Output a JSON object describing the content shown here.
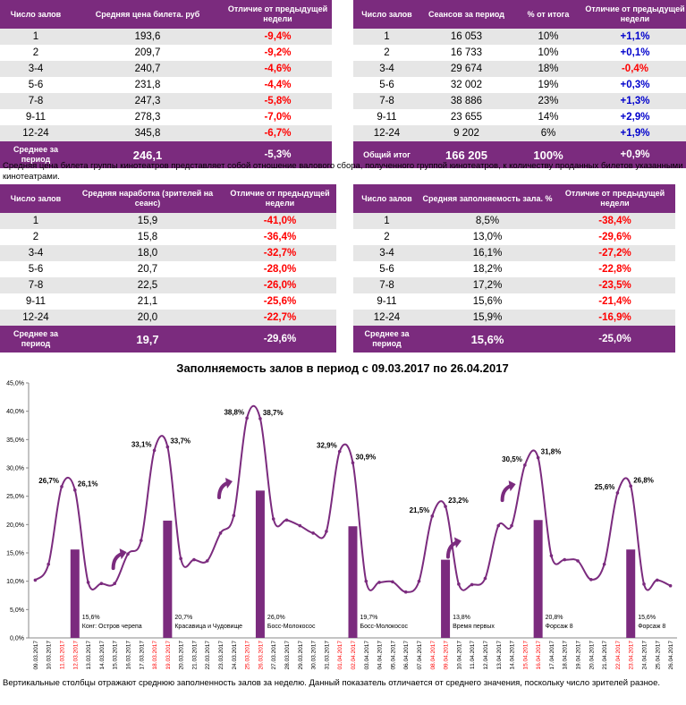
{
  "colors": {
    "header": "#7b2b7e",
    "row_alt": "#e6e6e6",
    "neg": "#ff0000",
    "pos": "#0000cc",
    "line": "#7b2b7e",
    "bar": "#7b2b7e",
    "red_date": "#ff0000"
  },
  "table_price": {
    "headers": [
      "Число залов",
      "Средняя цена билета. руб",
      "Отличие от предыдущей недели"
    ],
    "rows": [
      {
        "halls": "1",
        "value": "193,6",
        "diff": "-9,4%"
      },
      {
        "halls": "2",
        "value": "209,7",
        "diff": "-9,2%"
      },
      {
        "halls": "3-4",
        "value": "240,7",
        "diff": "-4,6%"
      },
      {
        "halls": "5-6",
        "value": "231,8",
        "diff": "-4,4%"
      },
      {
        "halls": "7-8",
        "value": "247,3",
        "diff": "-5,8%"
      },
      {
        "halls": "9-11",
        "value": "278,3",
        "diff": "-7,0%"
      },
      {
        "halls": "12-24",
        "value": "345,8",
        "diff": "-6,7%"
      }
    ],
    "footer": {
      "label": "Среднее за период",
      "value": "246,1",
      "diff": "-5,3%"
    }
  },
  "table_sessions": {
    "headers": [
      "Число залов",
      "Сеансов за период",
      "% от итога",
      "Отличие от предыдущей недели"
    ],
    "rows": [
      {
        "halls": "1",
        "sessions": "16 053",
        "share": "10%",
        "diff": "+1,1%"
      },
      {
        "halls": "2",
        "sessions": "16 733",
        "share": "10%",
        "diff": "+0,1%"
      },
      {
        "halls": "3-4",
        "sessions": "29 674",
        "share": "18%",
        "diff": "-0,4%"
      },
      {
        "halls": "5-6",
        "sessions": "32 002",
        "share": "19%",
        "diff": "+0,3%"
      },
      {
        "halls": "7-8",
        "sessions": "38 886",
        "share": "23%",
        "diff": "+1,3%"
      },
      {
        "halls": "9-11",
        "sessions": "23 655",
        "share": "14%",
        "diff": "+2,9%"
      },
      {
        "halls": "12-24",
        "sessions": "9 202",
        "share": "6%",
        "diff": "+1,9%"
      }
    ],
    "footer": {
      "label": "Общий итог",
      "sessions": "166 205",
      "share": "100%",
      "diff": "+0,9%"
    }
  },
  "note_price": "Средняя цена билета группы кинотеатров представляет собой отношение валового сбора, полученного группой кинотеатров, к количеству проданных билетов указанными кинотеатрами.",
  "table_viewers": {
    "headers": [
      "Число залов",
      "Средняя наработка (зрителей на сеанс)",
      "Отличие от предыдущей недели"
    ],
    "rows": [
      {
        "halls": "1",
        "value": "15,9",
        "diff": "-41,0%"
      },
      {
        "halls": "2",
        "value": "15,8",
        "diff": "-36,4%"
      },
      {
        "halls": "3-4",
        "value": "18,0",
        "diff": "-32,7%"
      },
      {
        "halls": "5-6",
        "value": "20,7",
        "diff": "-28,0%"
      },
      {
        "halls": "7-8",
        "value": "22,5",
        "diff": "-26,0%"
      },
      {
        "halls": "9-11",
        "value": "21,1",
        "diff": "-25,6%"
      },
      {
        "halls": "12-24",
        "value": "20,0",
        "diff": "-22,7%"
      }
    ],
    "footer": {
      "label": "Среднее за период",
      "value": "19,7",
      "diff": "-29,6%"
    }
  },
  "table_occupancy": {
    "headers": [
      "Число залов",
      "Средняя заполняемость зала. %",
      "Отличие от предыдущей недели"
    ],
    "rows": [
      {
        "halls": "1",
        "value": "8,5%",
        "diff": "-38,4%"
      },
      {
        "halls": "2",
        "value": "13,0%",
        "diff": "-29,6%"
      },
      {
        "halls": "3-4",
        "value": "16,1%",
        "diff": "-27,2%"
      },
      {
        "halls": "5-6",
        "value": "18,2%",
        "diff": "-22,8%"
      },
      {
        "halls": "7-8",
        "value": "17,2%",
        "diff": "-23,5%"
      },
      {
        "halls": "9-11",
        "value": "15,6%",
        "diff": "-21,4%"
      },
      {
        "halls": "12-24",
        "value": "15,9%",
        "diff": "-16,9%"
      }
    ],
    "footer": {
      "label": "Среднее за период",
      "value": "15,6%",
      "diff": "-25,0%"
    }
  },
  "chart_data": {
    "type": "line",
    "title": "Заполняемость залов в период с 09.03.2017 по 26.04.2017",
    "ylim": [
      0,
      45
    ],
    "y_ticks": [
      "0,0%",
      "5,0%",
      "10,0%",
      "15,0%",
      "20,0%",
      "25,0%",
      "30,0%",
      "35,0%",
      "40,0%",
      "45,0%"
    ],
    "x": [
      "09.03.2017",
      "10.03.2017",
      "11.03.2017",
      "12.03.2017",
      "13.03.2017",
      "14.03.2017",
      "15.03.2017",
      "16.03.2017",
      "17.03.2017",
      "18.03.2017",
      "19.03.2017",
      "20.03.2017",
      "21.03.2017",
      "22.03.2017",
      "23.03.2017",
      "24.03.2017",
      "25.03.2017",
      "26.03.2017",
      "27.03.2017",
      "28.03.2017",
      "29.03.2017",
      "30.03.2017",
      "31.03.2017",
      "01.04.2017",
      "02.04.2017",
      "03.04.2017",
      "04.04.2017",
      "05.04.2017",
      "06.04.2017",
      "07.04.2017",
      "08.04.2017",
      "09.04.2017",
      "10.04.2017",
      "11.04.2017",
      "12.04.2017",
      "13.04.2017",
      "14.04.2017",
      "15.04.2017",
      "16.04.2017",
      "17.04.2017",
      "18.04.2017",
      "19.04.2017",
      "20.04.2017",
      "21.04.2017",
      "22.04.2017",
      "23.04.2017",
      "24.04.2017",
      "25.04.2017",
      "26.04.2017"
    ],
    "red_dates": [
      "11.03.2017",
      "12.03.2017",
      "18.03.2017",
      "19.03.2017",
      "25.03.2017",
      "26.03.2017",
      "01.04.2017",
      "02.04.2017",
      "08.04.2017",
      "09.04.2017",
      "15.04.2017",
      "16.04.2017",
      "22.04.2017",
      "23.04.2017"
    ],
    "series": [
      {
        "name": "Заполняемость",
        "values": [
          10.2,
          13.0,
          26.7,
          26.1,
          9.8,
          9.6,
          9.6,
          14.8,
          17.2,
          33.1,
          33.7,
          14.0,
          13.8,
          13.6,
          18.5,
          21.6,
          38.8,
          38.7,
          21.0,
          20.8,
          19.8,
          18.5,
          18.8,
          32.9,
          30.9,
          10.0,
          9.8,
          9.9,
          8.1,
          10.0,
          21.5,
          23.2,
          9.5,
          9.4,
          10.5,
          19.8,
          19.8,
          30.5,
          31.8,
          14.5,
          13.8,
          13.6,
          10.3,
          13.0,
          25.6,
          26.8,
          9.5,
          10.2,
          9.2
        ]
      }
    ],
    "point_labels": [
      {
        "index": 2,
        "text": "26,7%"
      },
      {
        "index": 3,
        "text": "26,1%"
      },
      {
        "index": 9,
        "text": "33,1%"
      },
      {
        "index": 10,
        "text": "33,7%"
      },
      {
        "index": 16,
        "text": "38,8%"
      },
      {
        "index": 17,
        "text": "38,7%"
      },
      {
        "index": 23,
        "text": "32,9%"
      },
      {
        "index": 24,
        "text": "30,9%"
      },
      {
        "index": 30,
        "text": "21,5%"
      },
      {
        "index": 31,
        "text": "23,2%"
      },
      {
        "index": 37,
        "text": "30,5%"
      },
      {
        "index": 38,
        "text": "31,8%"
      },
      {
        "index": 44,
        "text": "25,6%"
      },
      {
        "index": 45,
        "text": "26,8%"
      }
    ],
    "bars": [
      {
        "index": 3,
        "value": 15.6,
        "label": "15,6%",
        "film": "Конг: Остров черепа"
      },
      {
        "index": 10,
        "value": 20.7,
        "label": "20,7%",
        "film": "Красавица и Чудовище"
      },
      {
        "index": 17,
        "value": 26.0,
        "label": "26,0%",
        "film": "Босс-Молокосос"
      },
      {
        "index": 24,
        "value": 19.7,
        "label": "19,7%",
        "film": "Босс-Молокосос"
      },
      {
        "index": 31,
        "value": 13.8,
        "label": "13,8%",
        "film": "Время первых"
      },
      {
        "index": 38,
        "value": 20.8,
        "label": "20,8%",
        "film": "Форсаж 8"
      },
      {
        "index": 45,
        "value": 15.6,
        "label": "15,6%",
        "film": "Форсаж 8"
      }
    ],
    "arrows": [
      {
        "x_index": 6.3,
        "y": 14.5
      },
      {
        "x_index": 14.3,
        "y": 27
      },
      {
        "x_index": 31.6,
        "y": 16.5
      },
      {
        "x_index": 35.7,
        "y": 26.5
      }
    ]
  },
  "note_chart": "Вертикальные столбцы отражают среднюю заполненность залов за неделю. Данный показатель отличается от среднего значения, поскольку число зрителей разное."
}
